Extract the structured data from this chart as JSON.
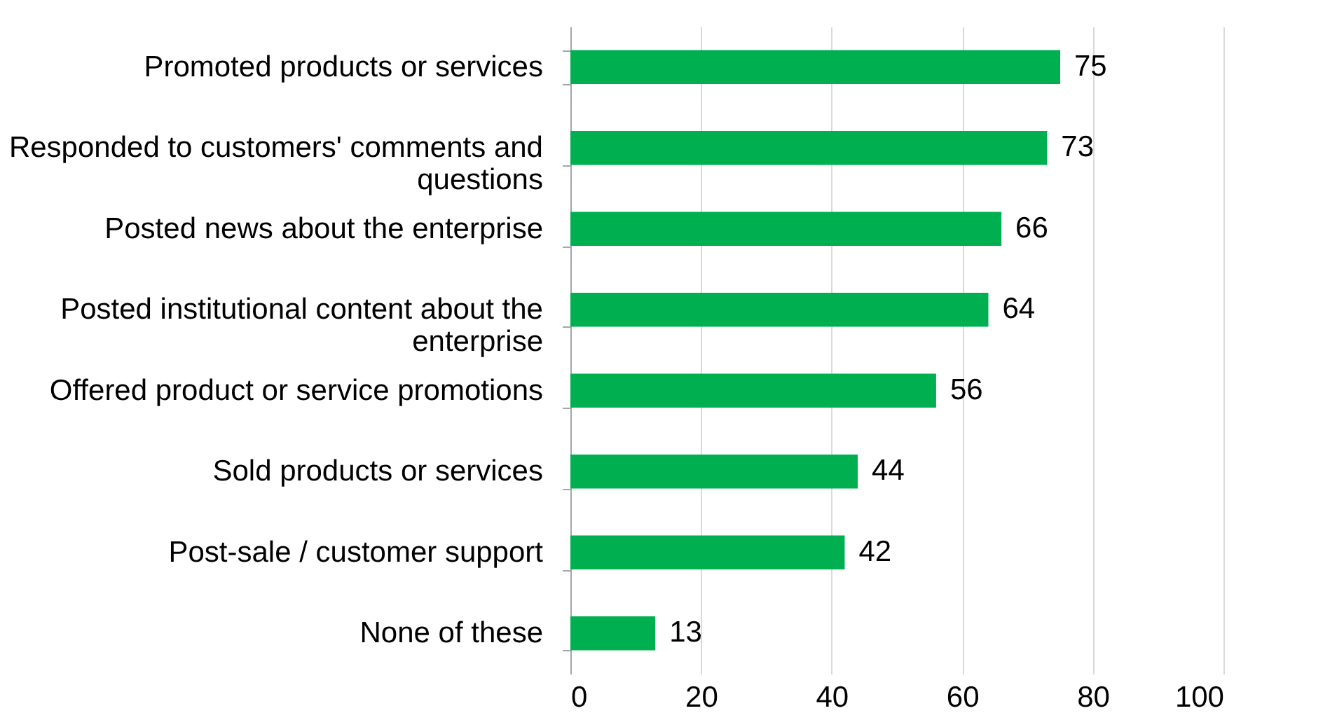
{
  "chart_data": {
    "type": "bar",
    "orientation": "horizontal",
    "categories": [
      "Promoted products or services",
      "Responded to customers' comments and questions",
      "Posted news about the enterprise",
      "Posted institutional content about the enterprise",
      "Offered product or service promotions",
      "Sold products or services",
      "Post-sale / customer support",
      "None of these"
    ],
    "values": [
      75,
      73,
      66,
      64,
      56,
      44,
      42,
      13
    ],
    "color": "#00b050",
    "data_labels": true,
    "xlim": [
      0,
      100
    ],
    "xticks": [
      0,
      20,
      40,
      60,
      80,
      100
    ],
    "grid": "x"
  }
}
